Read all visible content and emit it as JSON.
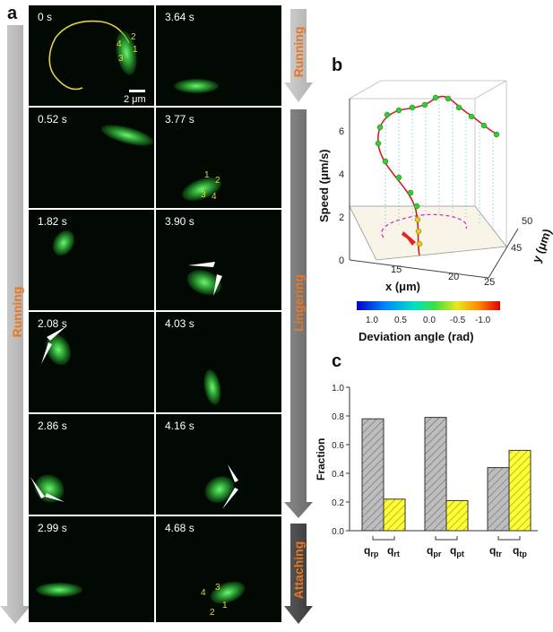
{
  "panel_a": {
    "letter": "a",
    "left_phase_label": "Running",
    "right_phases": [
      "Running",
      "Lingering",
      "Attaching"
    ],
    "scale_bar": "2 μm",
    "frames": [
      {
        "time": "0 s",
        "labels": [
          "2",
          "4",
          "1",
          "3"
        ]
      },
      {
        "time": "3.64 s",
        "labels": []
      },
      {
        "time": "0.52 s",
        "labels": []
      },
      {
        "time": "3.77 s",
        "labels": [
          "1",
          "2",
          "3",
          "4"
        ]
      },
      {
        "time": "1.82 s",
        "labels": []
      },
      {
        "time": "3.90 s",
        "labels": []
      },
      {
        "time": "2.08 s",
        "labels": []
      },
      {
        "time": "4.03 s",
        "labels": []
      },
      {
        "time": "2.86 s",
        "labels": []
      },
      {
        "time": "4.16 s",
        "labels": []
      },
      {
        "time": "2.99 s",
        "labels": []
      },
      {
        "time": "4.68 s",
        "labels": [
          "4",
          "3",
          "1",
          "2"
        ]
      }
    ]
  },
  "panel_b": {
    "letter": "b",
    "z_label": "Speed (μm/s)",
    "x_label": "x (μm)",
    "y_label": "y (μm)",
    "z_ticks": [
      "0",
      "2",
      "4",
      "6"
    ],
    "x_ticks": [
      "15",
      "20",
      "25"
    ],
    "y_ticks": [
      "45",
      "50"
    ],
    "colorbar_label": "Deviation angle (rad)",
    "colorbar_ticks": [
      "1.0",
      "0.5",
      "0.0",
      "-0.5",
      "-1.0"
    ],
    "colors": {
      "trajectory": "#cc2222",
      "points": "#33cc33",
      "projection": "#cc33cc",
      "drops": "#66cccc",
      "arrow": "#e82020"
    }
  },
  "panel_c": {
    "letter": "c",
    "chart_data": {
      "type": "bar",
      "ylabel": "Fraction",
      "ylim": [
        0,
        1.0
      ],
      "yticks": [
        "0.0",
        "0.2",
        "0.4",
        "0.6",
        "0.8",
        "1.0"
      ],
      "groups": [
        {
          "labels": [
            {
              "base": "q",
              "sub": "rp"
            },
            {
              "base": "q",
              "sub": "rt"
            }
          ],
          "values": [
            0.78,
            0.22
          ]
        },
        {
          "labels": [
            {
              "base": "q",
              "sub": "pr"
            },
            {
              "base": "q",
              "sub": "pt"
            }
          ],
          "values": [
            0.79,
            0.21
          ]
        },
        {
          "labels": [
            {
              "base": "q",
              "sub": "tr"
            },
            {
              "base": "q",
              "sub": "tp"
            }
          ],
          "values": [
            0.44,
            0.56
          ]
        }
      ],
      "colors": {
        "first": "#bdbdbd",
        "second": "#ffff33"
      }
    }
  }
}
